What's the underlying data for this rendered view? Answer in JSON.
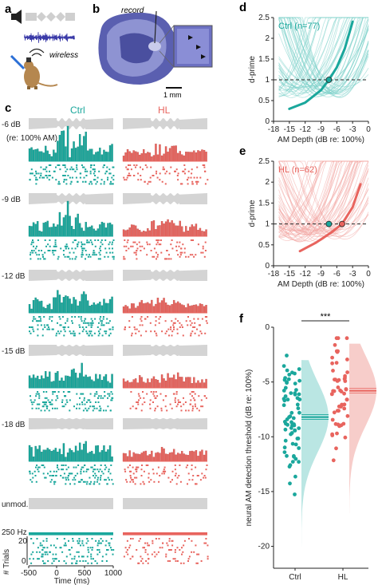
{
  "panels": {
    "a": {
      "letter": "a",
      "wireless_label": "wireless"
    },
    "b": {
      "letter": "b",
      "record_label": "record",
      "scale_label": "1 mm"
    },
    "c": {
      "letter": "c",
      "group_labels": [
        "Ctrl",
        "HL"
      ],
      "rows": [
        {
          "label": "-6 dB",
          "sublabel": "(re: 100% AM)"
        },
        {
          "label": "-9 dB"
        },
        {
          "label": "-12 dB"
        },
        {
          "label": "-15 dB"
        },
        {
          "label": "-18 dB"
        },
        {
          "label": "unmod."
        }
      ],
      "scale_label": "250 Hz",
      "trials_label": "# Trials",
      "trials_ticks": [
        "20",
        "0"
      ],
      "x_ticks": [
        "-500",
        "0",
        "500",
        "1000"
      ],
      "x_label": "Time (ms)"
    }
  },
  "colors": {
    "ctrl": "#1aa79c",
    "hl": "#e8645e",
    "stim": "#d4d4d4"
  },
  "chart_data": [
    {
      "panel": "d",
      "type": "line",
      "legend": "Ctrl (n=77)",
      "xlabel": "AM Depth (dB re: 100%)",
      "ylabel": "d-prime",
      "xlim": [
        -18,
        0
      ],
      "ylim": [
        0,
        2.5
      ],
      "xticks": [
        "-18",
        "-15",
        "-12",
        "-9",
        "-6",
        "-3",
        "0"
      ],
      "yticks": [
        "0",
        "0.5",
        "1",
        "1.5",
        "2",
        "2.5"
      ],
      "reference_line": 1,
      "series": [
        {
          "values": [
            {
              "x": -15,
              "y": 0.3
            },
            {
              "x": -12,
              "y": 0.45
            },
            {
              "x": -9,
              "y": 0.75
            },
            {
              "x": -7.5,
              "y": 1.0
            },
            {
              "x": -6,
              "y": 1.3
            },
            {
              "x": -4.5,
              "y": 1.75
            },
            {
              "x": -3,
              "y": 2.4
            }
          ]
        }
      ],
      "threshold_markers": [
        {
          "x": -7.5,
          "y": 1.0
        }
      ]
    },
    {
      "panel": "e",
      "type": "line",
      "legend": "HL (n=62)",
      "xlabel": "AM Depth (dB re: 100%)",
      "ylabel": "d-prime",
      "xlim": [
        -18,
        0
      ],
      "ylim": [
        0,
        2.5
      ],
      "xticks": [
        "-18",
        "-15",
        "-12",
        "-9",
        "-6",
        "-3",
        "0"
      ],
      "yticks": [
        "0",
        "0.5",
        "1",
        "1.5",
        "2",
        "2.5"
      ],
      "reference_line": 1,
      "series": [
        {
          "values": [
            {
              "x": -13,
              "y": 0.35
            },
            {
              "x": -10,
              "y": 0.55
            },
            {
              "x": -7,
              "y": 0.8
            },
            {
              "x": -5,
              "y": 1.0
            },
            {
              "x": -3,
              "y": 1.4
            },
            {
              "x": -1.5,
              "y": 1.95
            }
          ]
        }
      ],
      "threshold_markers": [
        {
          "x": -7.5,
          "y": 1.0
        },
        {
          "x": -5,
          "y": 1.0
        }
      ]
    },
    {
      "panel": "f",
      "type": "scatter",
      "ylabel": "neural AM detection threshold (dB re: 100%)",
      "ylim": [
        -22,
        0
      ],
      "yticks": [
        "0",
        "-5",
        "-10",
        "-15",
        "-20"
      ],
      "categories": [
        "Ctrl",
        "HL"
      ],
      "significance": "***",
      "means": [
        -8.2,
        -5.8
      ]
    }
  ]
}
